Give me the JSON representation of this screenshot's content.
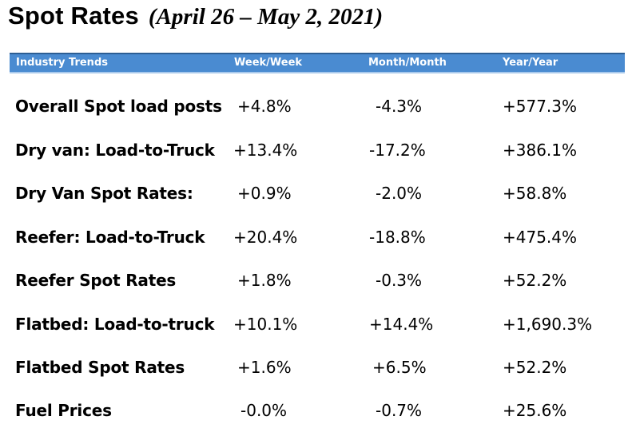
{
  "title": {
    "main": "Spot Rates",
    "sub": "(April 26 – May 2, 2021)"
  },
  "table": {
    "headers": [
      "Industry Trends",
      "Week/Week",
      "Month/Month",
      "Year/Year"
    ],
    "rows": [
      {
        "label": "Overall Spot load posts",
        "week": "+4.8%",
        "month": "-4.3%",
        "year": "+577.3%"
      },
      {
        "label": "Dry van: Load-to-Truck",
        "week": "+13.4%",
        "month": "-17.2%",
        "year": "+386.1%"
      },
      {
        "label": "Dry Van Spot Rates:",
        "week": "+0.9%",
        "month": "-2.0%",
        "year": "+58.8%"
      },
      {
        "label": "Reefer: Load-to-Truck",
        "week": "+20.4%",
        "month": "-18.8%",
        "year": "+475.4%"
      },
      {
        "label": "Reefer Spot Rates",
        "week": "+1.8%",
        "month": "-0.3%",
        "year": "+52.2%"
      },
      {
        "label": "Flatbed: Load-to-truck",
        "week": "+10.1%",
        "month": "+14.4%",
        "year": "+1,690.3%"
      },
      {
        "label": "Flatbed Spot Rates",
        "week": "+1.6%",
        "month": "+6.5%",
        "year": "+52.2%"
      },
      {
        "label": "Fuel Prices",
        "week": "-0.0%",
        "month": "-0.7%",
        "year": "+25.6%"
      }
    ]
  },
  "colors": {
    "header_band": "#4a8bd1",
    "header_text": "#ffffff",
    "body_text": "#000000"
  }
}
